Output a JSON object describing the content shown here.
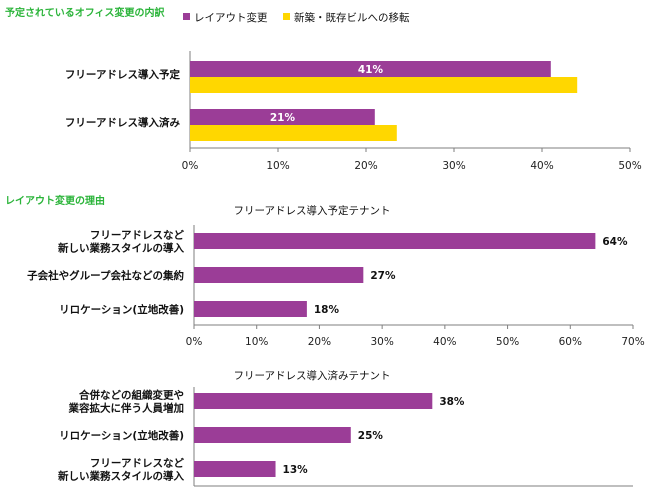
{
  "colors": {
    "purple": "#9B3D97",
    "yellow": "#FFD700",
    "axis": "#7f7f7f",
    "title_green": "#2BB43A"
  },
  "chart_data": [
    {
      "type": "bar",
      "orientation": "horizontal",
      "title": "予定されているオフィス変更の内訳",
      "categories": [
        "フリーアドレス導入予定",
        "フリーアドレス導入済み"
      ],
      "series": [
        {
          "name": "レイアウト変更",
          "values": [
            41,
            21
          ],
          "labels": [
            "41%",
            "21%"
          ]
        },
        {
          "name": "新築・既存ビルへの移転",
          "values": [
            44,
            23.5
          ]
        }
      ],
      "xlim": [
        0,
        50
      ],
      "ticks": [
        "0%",
        "10%",
        "20%",
        "30%",
        "40%",
        "50%"
      ],
      "legend": "top-left"
    },
    {
      "type": "bar",
      "orientation": "horizontal",
      "title": "レイアウト変更の理由",
      "subtitle": "フリーアドレス導入予定テナント",
      "categories": [
        [
          "フリーアドレスなど",
          "新しい業務スタイルの導入"
        ],
        [
          "子会社やグループ会社などの集約"
        ],
        [
          "リロケーション(立地改善)"
        ]
      ],
      "values": [
        64,
        27,
        18
      ],
      "labels": [
        "64%",
        "27%",
        "18%"
      ],
      "xlim": [
        0,
        70
      ],
      "ticks": [
        "0%",
        "10%",
        "20%",
        "30%",
        "40%",
        "50%",
        "60%",
        "70%"
      ]
    },
    {
      "type": "bar",
      "orientation": "horizontal",
      "subtitle": "フリーアドレス導入済みテナント",
      "categories": [
        [
          "合併などの組織変更や",
          "業容拡大に伴う人員増加"
        ],
        [
          "リロケーション(立地改善)"
        ],
        [
          "フリーアドレスなど",
          "新しい業務スタイルの導入"
        ]
      ],
      "values": [
        38,
        25,
        13
      ],
      "labels": [
        "38%",
        "25%",
        "13%"
      ],
      "xlim": [
        0,
        70
      ]
    }
  ]
}
